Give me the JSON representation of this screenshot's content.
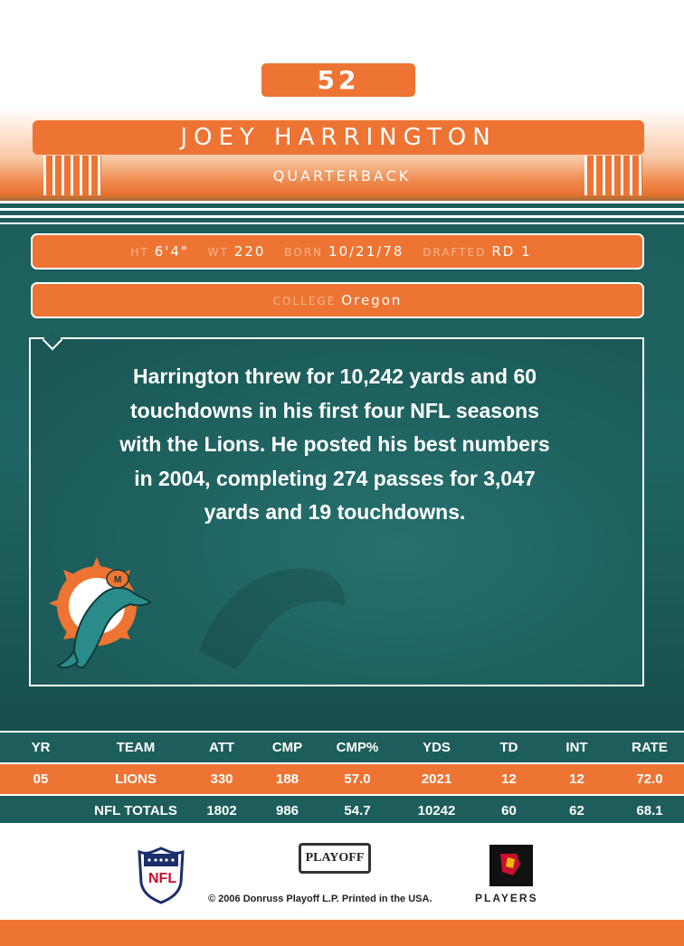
{
  "card": {
    "number": "52",
    "player_name": "JOEY HARRINGTON",
    "position": "QUARTERBACK",
    "bio": {
      "ht_label": "HT",
      "ht": "6'4\"",
      "wt_label": "WT",
      "wt": "220",
      "born_label": "BORN",
      "born": "10/21/78",
      "drafted_label": "DRAFTED",
      "drafted": "RD 1"
    },
    "college_label": "COLLEGE",
    "college": "Oregon",
    "description": "Harrington threw for 10,242 yards and 60 touchdowns in his first four NFL seasons with the Lions. He posted his best numbers in 2004, completing 274 passes for 3,047 yards and 19 touchdowns."
  },
  "stats": {
    "headers": [
      "YR",
      "TEAM",
      "ATT",
      "CMP",
      "CMP%",
      "YDS",
      "TD",
      "INT",
      "RATE"
    ],
    "rows": [
      [
        "05",
        "LIONS",
        "330",
        "188",
        "57.0",
        "2021",
        "12",
        "12",
        "72.0"
      ],
      [
        "",
        "NFL TOTALS",
        "1802",
        "986",
        "54.7",
        "10242",
        "60",
        "62",
        "68.1"
      ]
    ]
  },
  "footer": {
    "copyright": "© 2006 Donruss Playoff L.P. Printed in the USA.",
    "playoff_logo": "PLAYOFF",
    "players_logo": "PLAYERS"
  },
  "colors": {
    "orange": "#ee7433",
    "teal": "#1d5e5c",
    "white": "#ffffff"
  }
}
